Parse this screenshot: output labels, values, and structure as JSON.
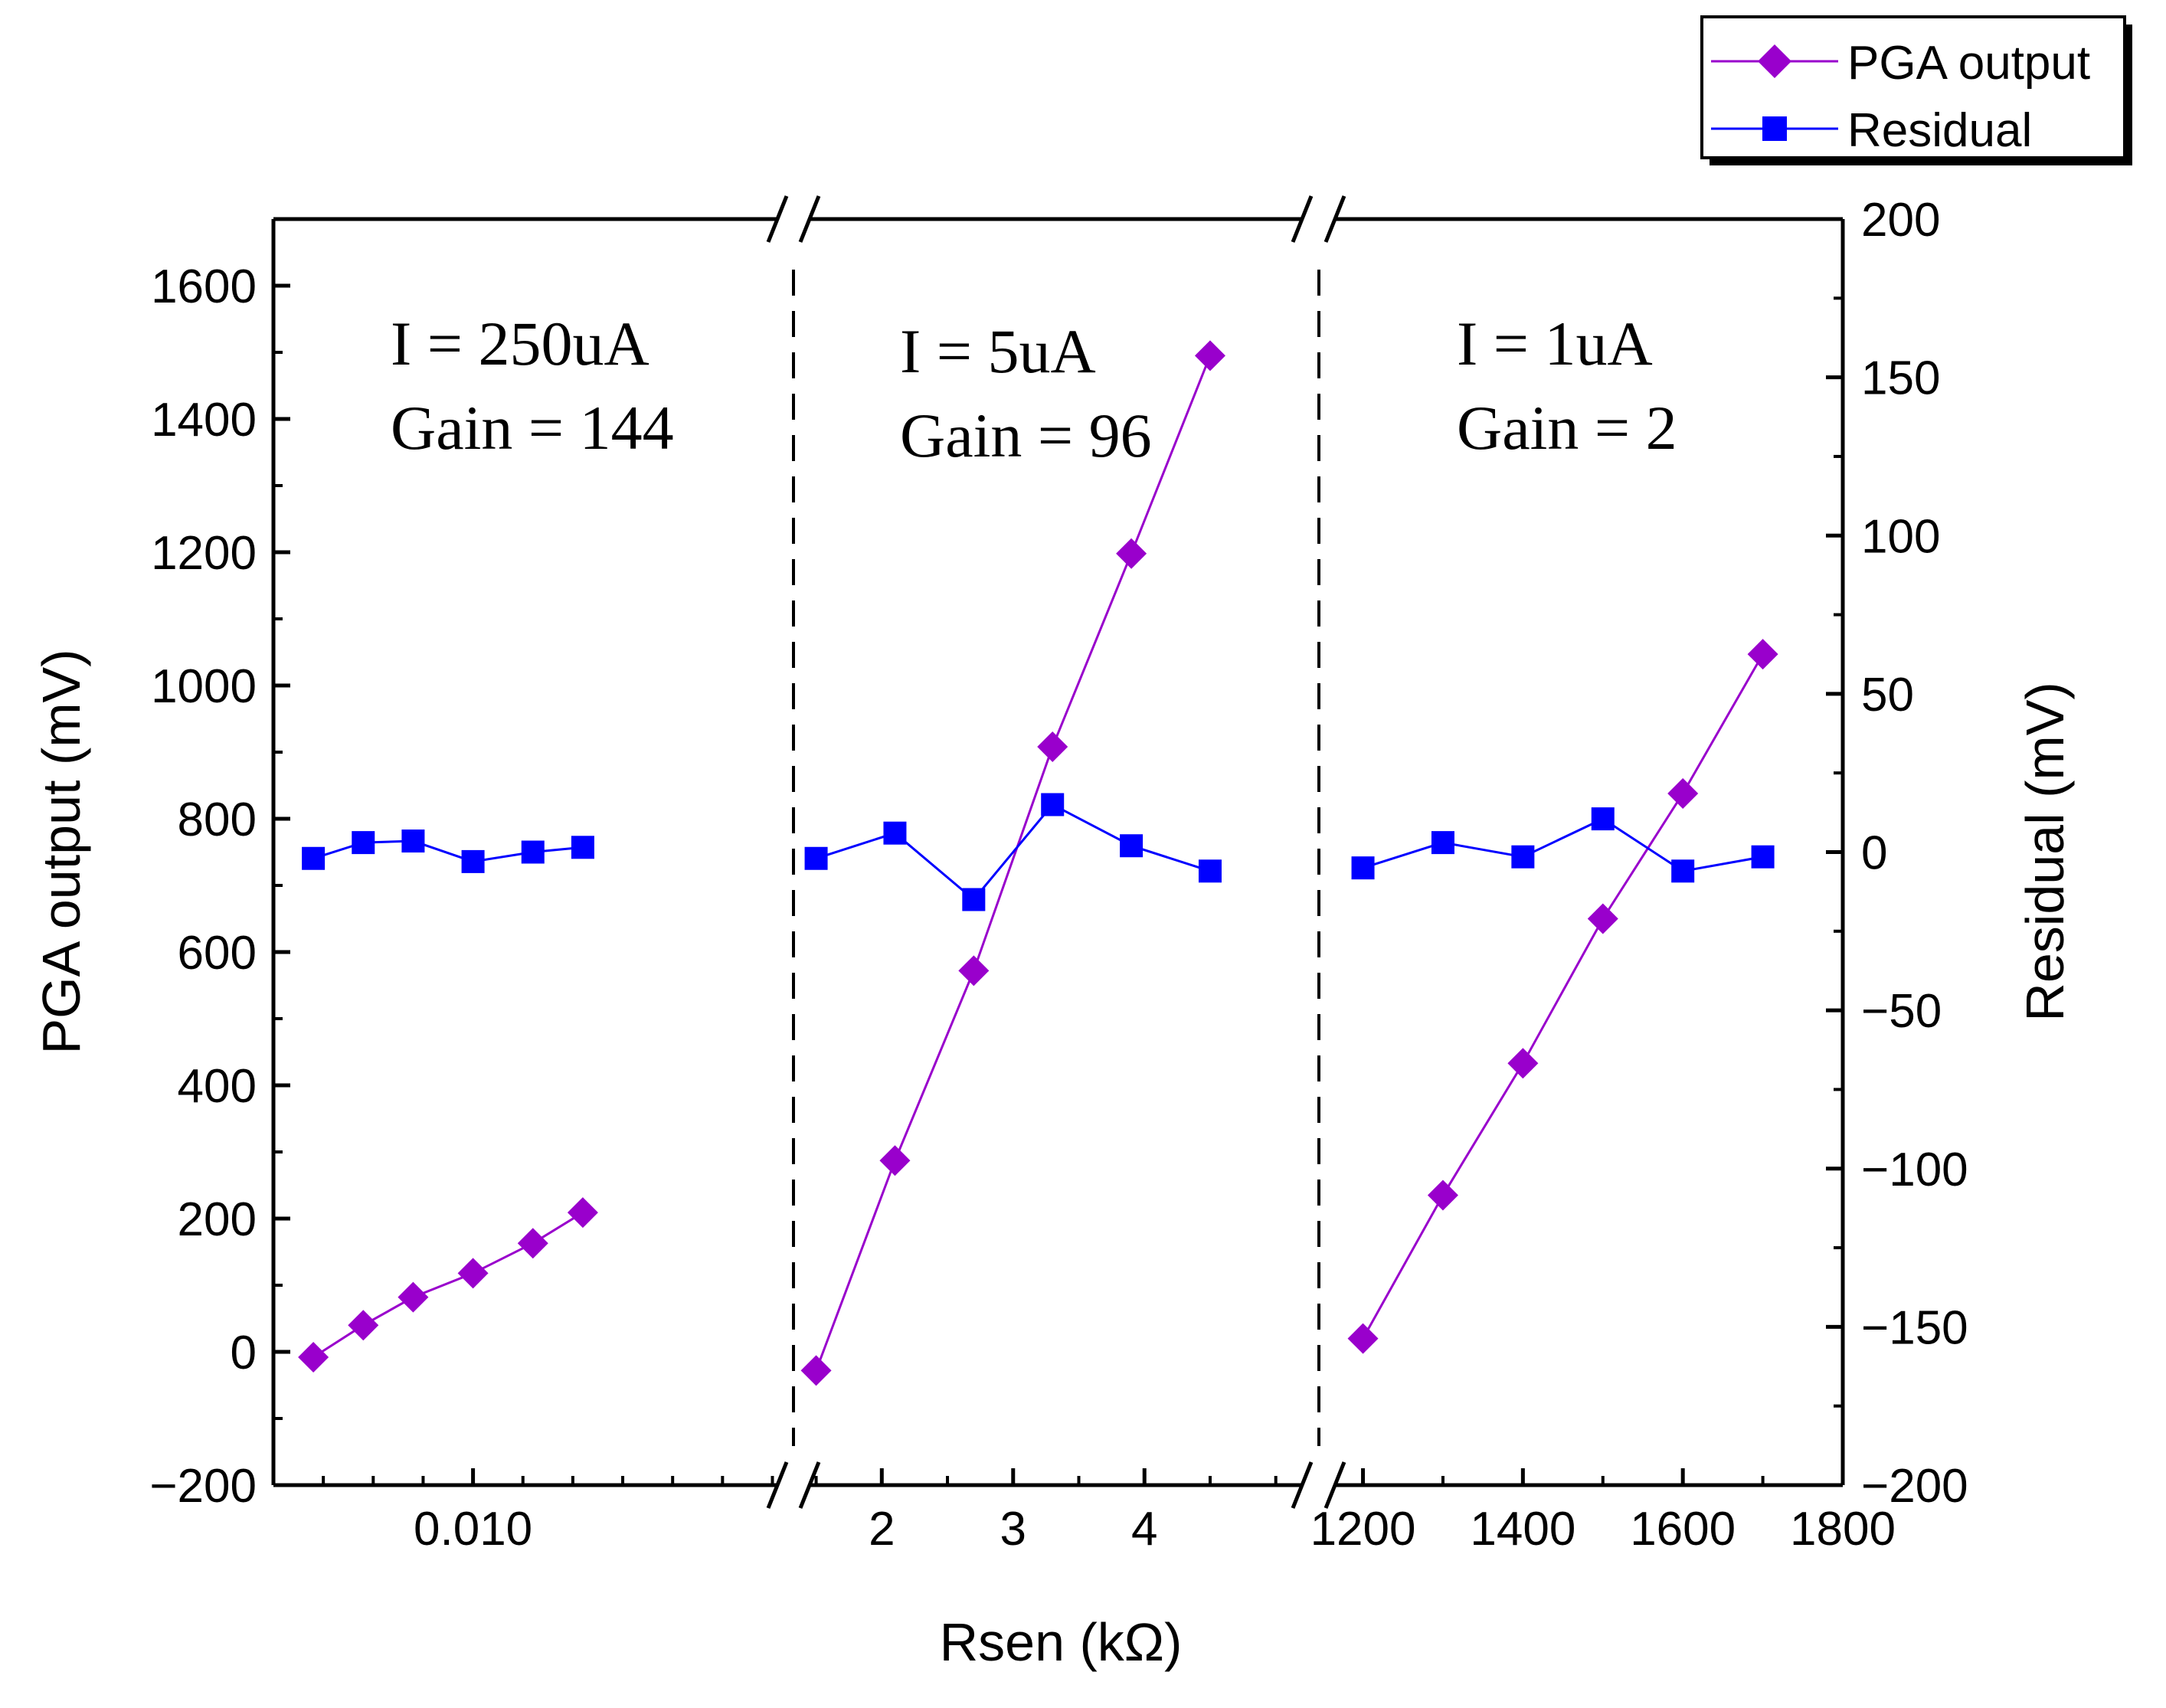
{
  "chart_data": {
    "type": "line",
    "title": "",
    "xlabel": "Rsen (kΩ)",
    "ylabel": "PGA output (mV)",
    "y2label": "Residual (mV)",
    "ylim": [
      -200,
      1700
    ],
    "y2lim": [
      -200,
      200
    ],
    "yticks": [
      "−200",
      "0",
      "200",
      "400",
      "600",
      "800",
      "1000",
      "1200",
      "1400",
      "1600"
    ],
    "y2ticks": [
      "−200",
      "−150",
      "−100",
      "−50",
      "0",
      "50",
      "100",
      "150",
      "200"
    ],
    "legend": {
      "position": "top-right",
      "entries": [
        {
          "name": "PGA output",
          "color": "#9900cc",
          "marker": "diamond"
        },
        {
          "name": "Residual",
          "color": "#0000ff",
          "marker": "square"
        }
      ]
    },
    "segments": [
      {
        "annotation": [
          "I = 250uA",
          "Gain = 144"
        ],
        "xlim": [
          0.006,
          0.0161
        ],
        "xticks": [
          0.01
        ],
        "xtick_labels": [
          "0.010"
        ],
        "x": [
          0.0068,
          0.0078,
          0.0088,
          0.01,
          0.0112,
          0.0122
        ],
        "pga_output": [
          -8,
          40,
          82,
          118,
          163,
          209
        ],
        "residual": [
          -2,
          3,
          3.5,
          -3,
          0,
          1.5
        ]
      },
      {
        "annotation": [
          "I = 5uA",
          "Gain = 96"
        ],
        "xlim": [
          1.45,
          5.2
        ],
        "xticks": [
          2,
          3,
          4
        ],
        "xtick_labels": [
          "2",
          "3",
          "4"
        ],
        "x": [
          1.5,
          2.1,
          2.7,
          3.3,
          3.9,
          4.5
        ],
        "pga_output": [
          -28,
          287,
          572,
          908,
          1198,
          1495
        ],
        "residual": [
          -2,
          6,
          -15,
          15,
          2,
          -6
        ]
      },
      {
        "annotation": [
          "I = 1uA",
          "Gain = 2"
        ],
        "xlim": [
          1165,
          1800
        ],
        "xticks": [
          1200,
          1400,
          1600,
          1800
        ],
        "xtick_labels": [
          "1200",
          "1400",
          "1600",
          "1800"
        ],
        "x": [
          1200,
          1300,
          1400,
          1500,
          1600,
          1700
        ],
        "pga_output": [
          20,
          235,
          433,
          650,
          838,
          1047
        ],
        "residual": [
          -5,
          3,
          -1.5,
          10.5,
          -6,
          -1.5
        ]
      }
    ],
    "colors": {
      "pga": "#9900cc",
      "residual": "#0000ff",
      "axis": "#000000"
    }
  }
}
